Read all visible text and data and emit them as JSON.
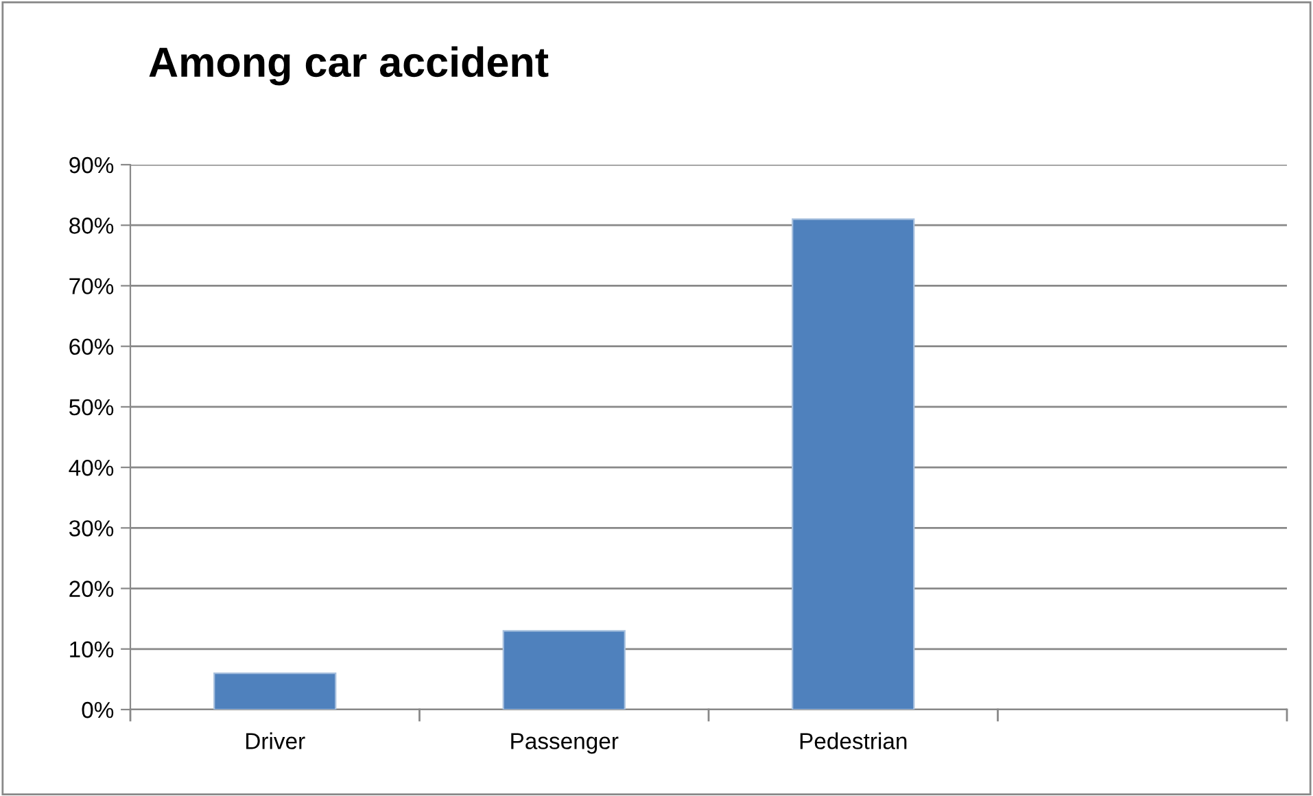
{
  "chart_data": {
    "type": "bar",
    "title": "Among car accident",
    "categories": [
      "Driver",
      "Passenger",
      "Pedestrian",
      null
    ],
    "values": [
      6,
      13,
      81,
      null
    ],
    "color": "#4f81bd",
    "ylim": [
      0,
      90
    ],
    "yticks": [
      {
        "value": 0,
        "label": "0%"
      },
      {
        "value": 10,
        "label": "10%"
      },
      {
        "value": 20,
        "label": "20%"
      },
      {
        "value": 30,
        "label": "30%"
      },
      {
        "value": 40,
        "label": "40%"
      },
      {
        "value": 50,
        "label": "50%"
      },
      {
        "value": 60,
        "label": "60%"
      },
      {
        "value": 70,
        "label": "70%"
      },
      {
        "value": 80,
        "label": "80%"
      },
      {
        "value": 90,
        "label": "90%"
      }
    ],
    "grid": "y",
    "legend": false
  }
}
